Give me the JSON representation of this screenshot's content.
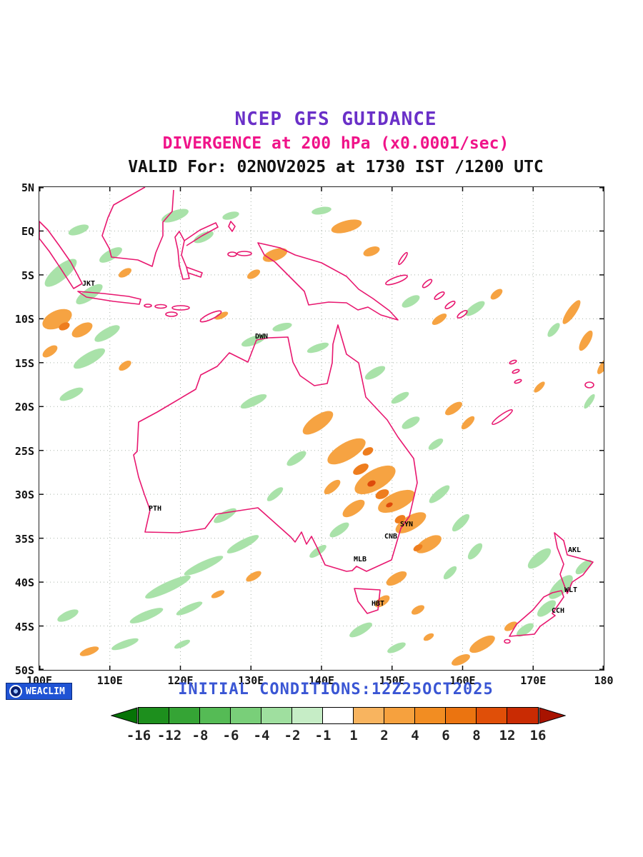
{
  "titles": {
    "line1": "NCEP GFS GUIDANCE",
    "line1_color": "#6a30c8",
    "line2": "DIVERGENCE at 200 hPa (x0.0001/sec)",
    "line2_color": "#f01389",
    "line3": "VALID For: 02NOV2025 at 1730 IST /1200 UTC",
    "line3_color": "#111111"
  },
  "map": {
    "coast_color": "#e8176f",
    "grid_color": "#a9b4a9",
    "neg_fill": "#a9e2a9",
    "pos_fill": "#f6a342",
    "pos_strong": "#ee7d1e",
    "pos_intense": "#de4a0c",
    "lat_ticks": [
      "5N",
      "EQ",
      "5S",
      "10S",
      "15S",
      "20S",
      "25S",
      "30S",
      "35S",
      "40S",
      "45S",
      "50S"
    ],
    "lon_ticks": [
      "100E",
      "110E",
      "120E",
      "130E",
      "140E",
      "150E",
      "160E",
      "170E",
      "180"
    ],
    "cities": [
      {
        "label": "JKT"
      },
      {
        "label": "DWN"
      },
      {
        "label": "PTH"
      },
      {
        "label": "SYN"
      },
      {
        "label": "CNB"
      },
      {
        "label": "MLB"
      },
      {
        "label": "HBT"
      },
      {
        "label": "AKL"
      },
      {
        "label": "WLT"
      },
      {
        "label": "CCH"
      }
    ]
  },
  "footer": {
    "initial_conditions": "INITIAL CONDITIONS:12Z25OCT2025",
    "initial_color": "#3a56d4",
    "logo_text": "WEACLIM",
    "logo_bg": "#1f53d4"
  },
  "colorbar": {
    "labels": [
      "-16",
      "-12",
      "-8",
      "-6",
      "-4",
      "-2",
      "-1",
      "1",
      "2",
      "4",
      "6",
      "8",
      "12",
      "16"
    ],
    "colors": [
      "#067306",
      "#1d8f1d",
      "#35a435",
      "#55bb55",
      "#79cf79",
      "#9fdf9f",
      "#c6edc6",
      "#ffffff",
      "#f8b45f",
      "#f6a13e",
      "#f28d22",
      "#eb7410",
      "#e04f08",
      "#c92b03",
      "#a81300"
    ]
  }
}
